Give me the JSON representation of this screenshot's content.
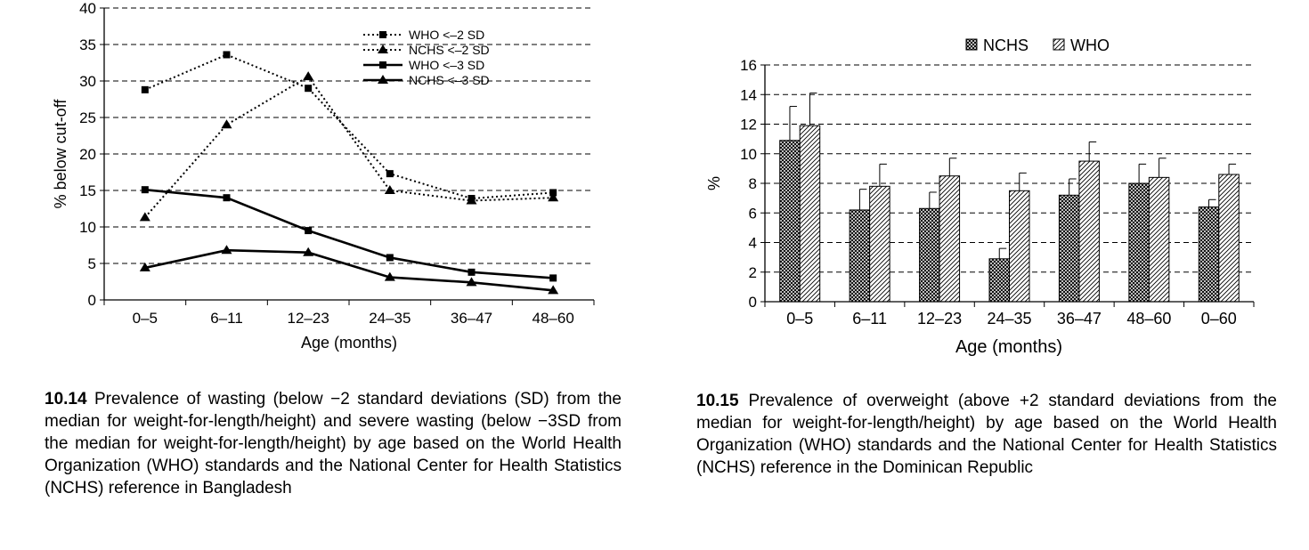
{
  "chart_data": [
    {
      "type": "line",
      "ylabel": "% below cut-off",
      "xlabel": "Age (months)",
      "ylim": [
        0,
        40
      ],
      "yticks": [
        0,
        5,
        10,
        15,
        20,
        25,
        30,
        35,
        40
      ],
      "categories": [
        "0–5",
        "6–11",
        "12–23",
        "24–35",
        "36–47",
        "48–60"
      ],
      "grid": "dashed horizontal",
      "legend_position": "top-right",
      "series": [
        {
          "name": "WHO <–2 SD",
          "values": [
            28.8,
            33.6,
            29.0,
            17.3,
            13.9,
            14.7
          ],
          "line": "dotted",
          "marker": "square"
        },
        {
          "name": "NCHS <–2 SD",
          "values": [
            11.3,
            24.0,
            30.6,
            15.0,
            13.6,
            14.0
          ],
          "line": "dotted",
          "marker": "triangle"
        },
        {
          "name": "WHO <–3 SD",
          "values": [
            15.1,
            14.0,
            9.5,
            5.8,
            3.8,
            3.0
          ],
          "line": "solid",
          "marker": "square"
        },
        {
          "name": "NCHS <–3 SD",
          "values": [
            4.4,
            6.8,
            6.5,
            3.1,
            2.4,
            1.3
          ],
          "line": "solid",
          "marker": "triangle"
        }
      ]
    },
    {
      "type": "bar",
      "ylabel": "%",
      "xlabel": "Age (months)",
      "ylim": [
        0,
        16
      ],
      "yticks": [
        0,
        2,
        4,
        6,
        8,
        10,
        12,
        14,
        16
      ],
      "categories": [
        "0–5",
        "6–11",
        "12–23",
        "24–35",
        "36–47",
        "48–60",
        "0–60"
      ],
      "grid": "dashed horizontal",
      "legend_position": "top",
      "error_bars": "upper",
      "series": [
        {
          "name": "NCHS",
          "pattern": "crosshatch",
          "values": [
            10.9,
            6.2,
            6.3,
            2.9,
            7.2,
            8.0,
            6.4
          ],
          "upper": [
            13.2,
            7.6,
            7.4,
            3.6,
            8.3,
            9.3,
            6.9
          ]
        },
        {
          "name": "WHO",
          "pattern": "diagonal",
          "values": [
            11.9,
            7.8,
            8.5,
            7.5,
            9.5,
            8.4,
            8.6
          ],
          "upper": [
            14.1,
            9.3,
            9.7,
            8.7,
            10.8,
            9.7,
            9.3
          ]
        }
      ]
    }
  ],
  "captions": [
    {
      "number": "10.14",
      "text": "Prevalence of wasting (below −2 standard deviations (SD) from the median for weight-for-length/height) and severe wasting (below −3SD from the median for weight-for-length/height) by age based on the World Health Organization (WHO) standards and the National Center for Health Statistics (NCHS) reference in Bangladesh"
    },
    {
      "number": "10.15",
      "text": "Prevalence of overweight (above +2 standard deviations from the median for weight-for-length/height) by age based on the World Health Organization (WHO) standards and the National Center for Health Statistics (NCHS) reference in the Dominican Republic"
    }
  ]
}
